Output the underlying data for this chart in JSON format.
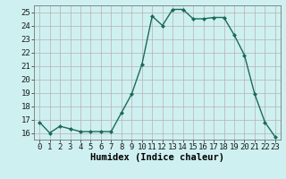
{
  "x": [
    0,
    1,
    2,
    3,
    4,
    5,
    6,
    7,
    8,
    9,
    10,
    11,
    12,
    13,
    14,
    15,
    16,
    17,
    18,
    19,
    20,
    21,
    22,
    23
  ],
  "y": [
    16.8,
    16.0,
    16.5,
    16.3,
    16.1,
    16.1,
    16.1,
    16.1,
    17.5,
    18.9,
    21.1,
    24.7,
    24.0,
    25.2,
    25.2,
    24.5,
    24.5,
    24.6,
    24.6,
    23.3,
    21.8,
    18.9,
    16.8,
    15.7
  ],
  "line_color": "#1a6b5a",
  "marker": "D",
  "marker_size": 2.0,
  "bg_color": "#cff0f0",
  "grid_color": "#b8b0b0",
  "xlabel": "Humidex (Indice chaleur)",
  "xlim": [
    -0.5,
    23.5
  ],
  "ylim": [
    15.5,
    25.5
  ],
  "yticks": [
    16,
    17,
    18,
    19,
    20,
    21,
    22,
    23,
    24,
    25
  ],
  "xticks": [
    0,
    1,
    2,
    3,
    4,
    5,
    6,
    7,
    8,
    9,
    10,
    11,
    12,
    13,
    14,
    15,
    16,
    17,
    18,
    19,
    20,
    21,
    22,
    23
  ],
  "xlabel_fontsize": 7.5,
  "tick_fontsize": 6.5,
  "linewidth": 1.0
}
